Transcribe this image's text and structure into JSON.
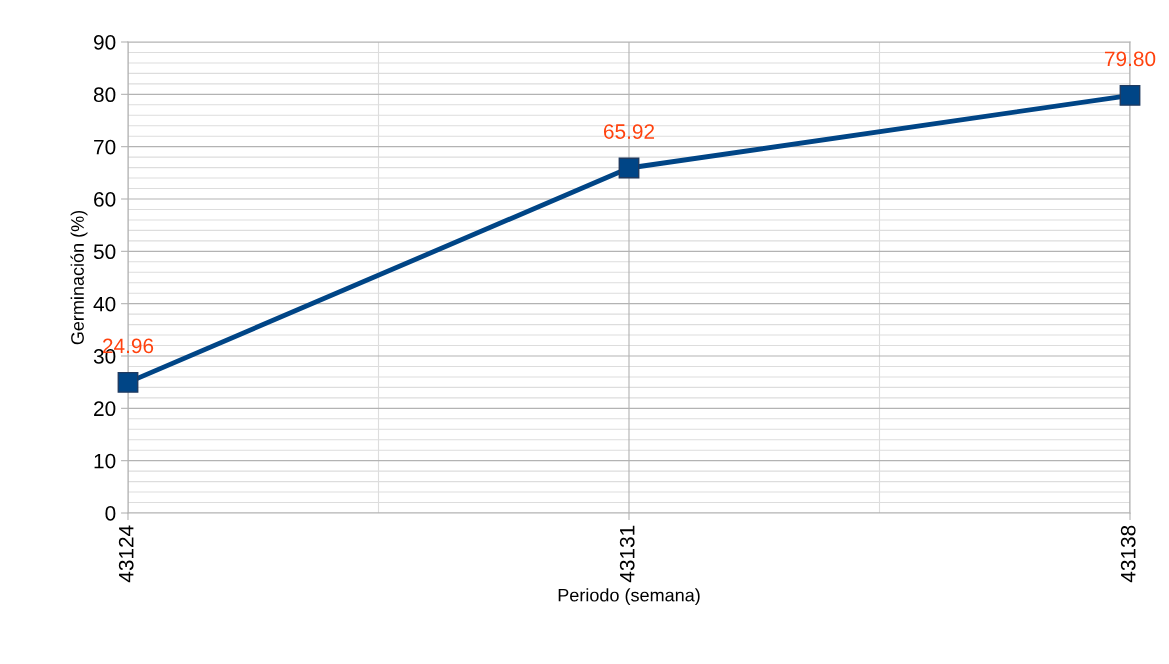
{
  "chart_data": {
    "type": "line",
    "xlabel": "Periodo (semana)",
    "ylabel": "Germinación (%)",
    "x": [
      43124,
      43131,
      43138
    ],
    "series": [
      {
        "color": "#004586",
        "values": [
          24.96,
          65.92,
          79.8
        ],
        "value_labels": [
          "24.96",
          "65.92",
          "79.80"
        ]
      }
    ],
    "xlim": [
      43124,
      43138
    ],
    "xticks": [
      43124,
      43131,
      43138
    ],
    "ylim": [
      0,
      90
    ],
    "yticks": [
      0,
      10,
      20,
      30,
      40,
      50,
      60,
      70,
      80,
      90
    ],
    "grid": true,
    "marker": "square",
    "line_style": "solid",
    "legend": false
  }
}
